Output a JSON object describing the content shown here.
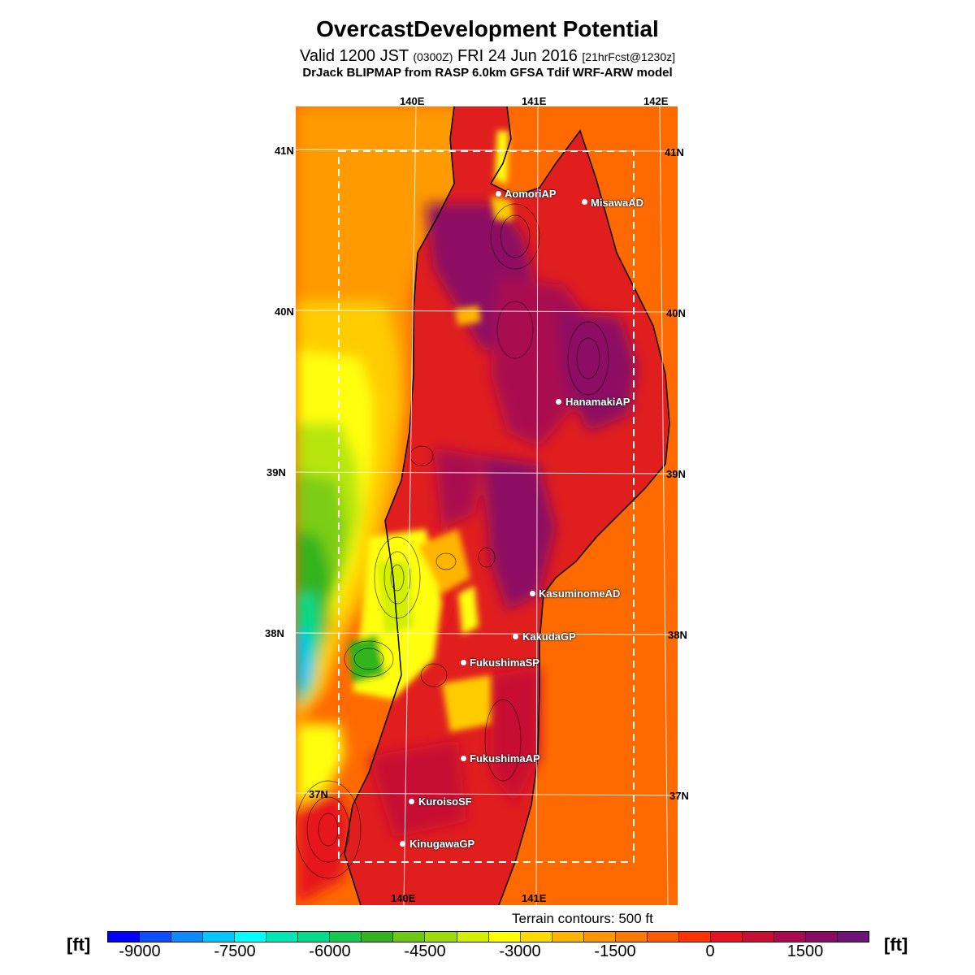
{
  "title": "OvercastDevelopment Potential",
  "subtitle": {
    "valid": "Valid 1200 JST",
    "utc": "(0300Z)",
    "date": "FRI 24 Jun 2016",
    "forecast": "[21hrFcst@1230z]"
  },
  "model_line": "DrJack BLIPMAP from RASP 6.0km GFSA Tdif WRF-ARW model",
  "map": {
    "lon_labels_top": [
      "140E",
      "141E",
      "142E"
    ],
    "lon_labels_bottom": [
      "140E",
      "141E"
    ],
    "lat_labels_left": [
      "41N",
      "40N",
      "39N",
      "38N",
      "37N"
    ],
    "lat_labels_right": [
      "41N",
      "40N",
      "39N",
      "38N",
      "37N"
    ],
    "stations": [
      "AomoriAP",
      "MisawaAD",
      "HanamakiAP",
      "KasuminomeAD",
      "KakudaGP",
      "FukushimaSP",
      "FukushimaAP",
      "KuroisoSF",
      "KinugawaGP"
    ],
    "terrain_note": "Terrain contours: 500 ft"
  },
  "colorbar": {
    "unit": "[ft]",
    "labels": [
      "-9000",
      "-7500",
      "-6000",
      "-4500",
      "-3000",
      "-1500",
      "0",
      "1500"
    ],
    "colors": [
      "#0000ff",
      "#0a50ff",
      "#0a8cff",
      "#00c8ff",
      "#00ffff",
      "#00e6b4",
      "#00dc8c",
      "#14c850",
      "#32b41e",
      "#6ec814",
      "#a0dc0a",
      "#d2f000",
      "#ffff00",
      "#ffdc00",
      "#ffb400",
      "#ff9600",
      "#ff7800",
      "#ff5a00",
      "#ff3200",
      "#e6141e",
      "#c80f32",
      "#aa0a50",
      "#8c0a64",
      "#6e1478"
    ]
  }
}
